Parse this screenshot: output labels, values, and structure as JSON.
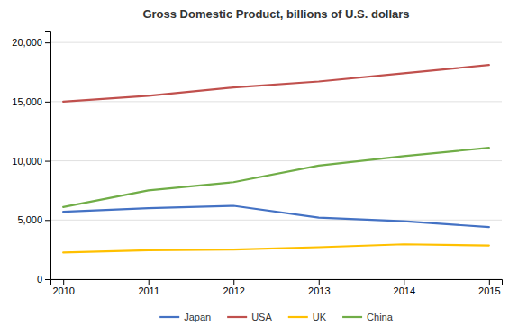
{
  "chart_data": {
    "type": "line",
    "title": "Gross Domestic Product, billions of U.S. dollars",
    "x": [
      2010,
      2011,
      2012,
      2013,
      2014,
      2015
    ],
    "series": [
      {
        "name": "Japan",
        "color": "#4472C4",
        "values": [
          5700,
          6000,
          6200,
          5200,
          4900,
          4400
        ]
      },
      {
        "name": "USA",
        "color": "#C0504D",
        "values": [
          15000,
          15500,
          16200,
          16700,
          17400,
          18100
        ]
      },
      {
        "name": "UK",
        "color": "#FFC000",
        "values": [
          2250,
          2450,
          2500,
          2700,
          2950,
          2850
        ]
      },
      {
        "name": "China",
        "color": "#70AD47",
        "values": [
          6100,
          7500,
          8200,
          9600,
          10400,
          11100
        ]
      }
    ],
    "xlim": [
      2009.85,
      2015.15
    ],
    "xticks": [
      2010,
      2011,
      2012,
      2013,
      2014,
      2015
    ],
    "ylim": [
      0,
      21000
    ],
    "yticks": [
      0,
      {
        "value": 5000,
        "label": "5,000"
      },
      {
        "value": 10000,
        "label": "10,000"
      },
      {
        "value": 15000,
        "label": "15,000"
      },
      {
        "value": 20000,
        "label": "20,000"
      }
    ],
    "grid": true,
    "legend": "bottom"
  }
}
